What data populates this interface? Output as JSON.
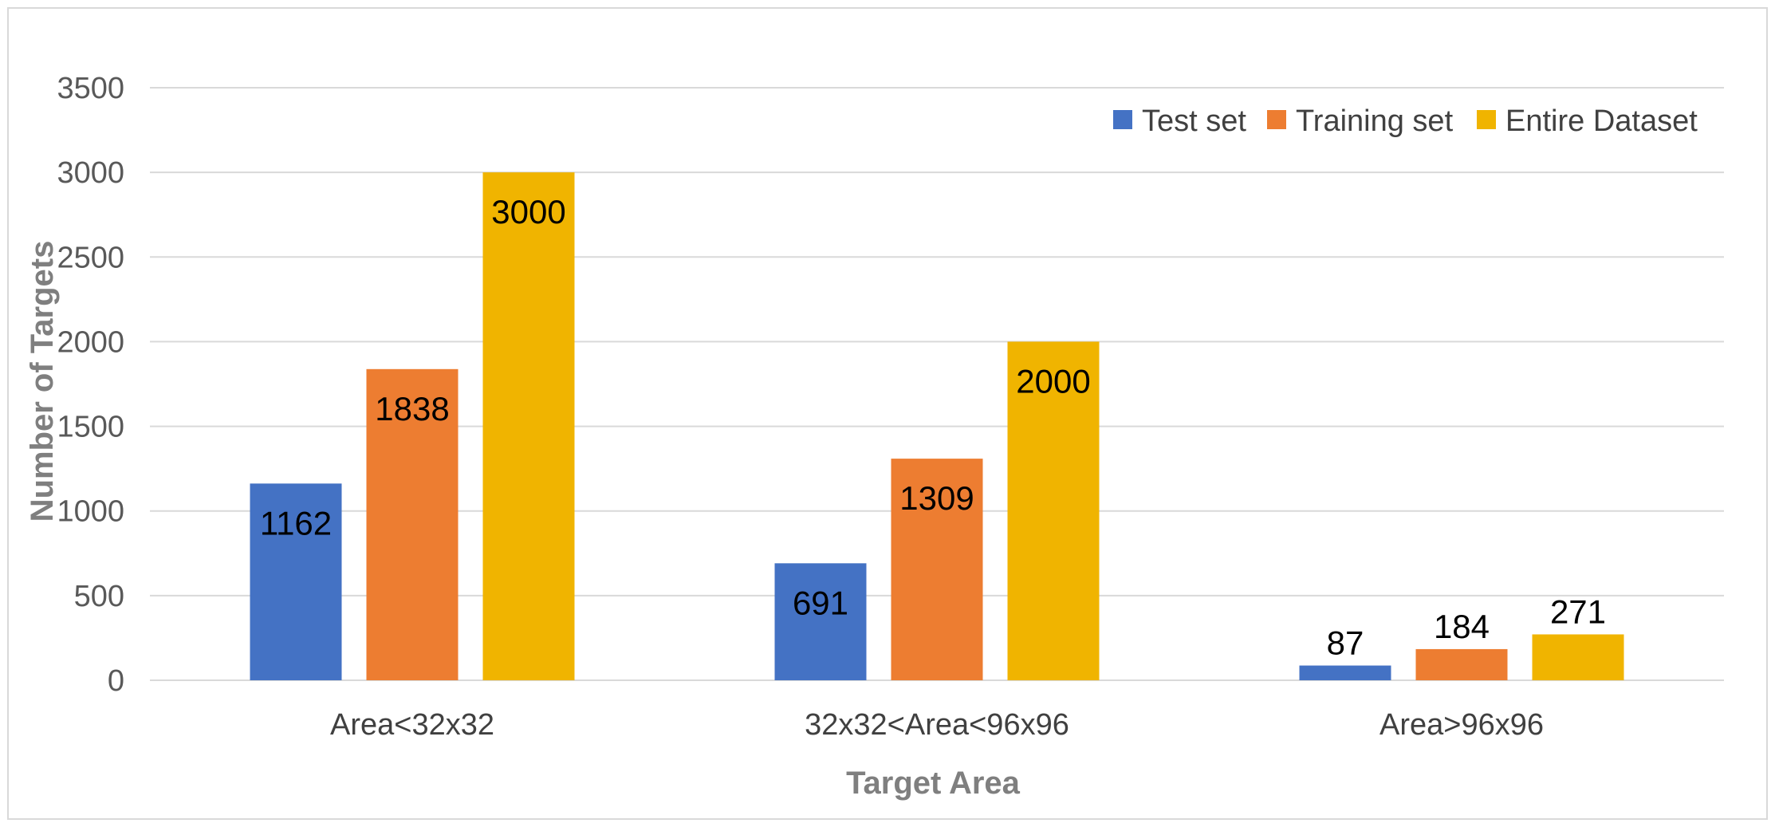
{
  "chart_data": {
    "type": "bar",
    "title": "",
    "xlabel": "Target Area",
    "ylabel": "Number of Targets",
    "categories": [
      "Area<32x32",
      "32x32<Area<96x96",
      "Area>96x96"
    ],
    "series": [
      {
        "name": "Test set",
        "color": "#4472c4",
        "values": [
          1162,
          691,
          87
        ]
      },
      {
        "name": "Training set",
        "color": "#ed7d31",
        "values": [
          1838,
          1309,
          184
        ]
      },
      {
        "name": "Entire Dataset",
        "color": "#f0b400",
        "values": [
          3000,
          2000,
          271
        ]
      }
    ],
    "data_labels": [
      [
        "1162",
        "691",
        "87"
      ],
      [
        "1838",
        "1309",
        "184"
      ],
      [
        "3000",
        "2000",
        "271"
      ]
    ],
    "ylim": [
      0,
      3500
    ],
    "yticks": [
      0,
      500,
      1000,
      1500,
      2000,
      2500,
      3000,
      3500
    ],
    "grid": true,
    "legend_position": "top-right"
  }
}
